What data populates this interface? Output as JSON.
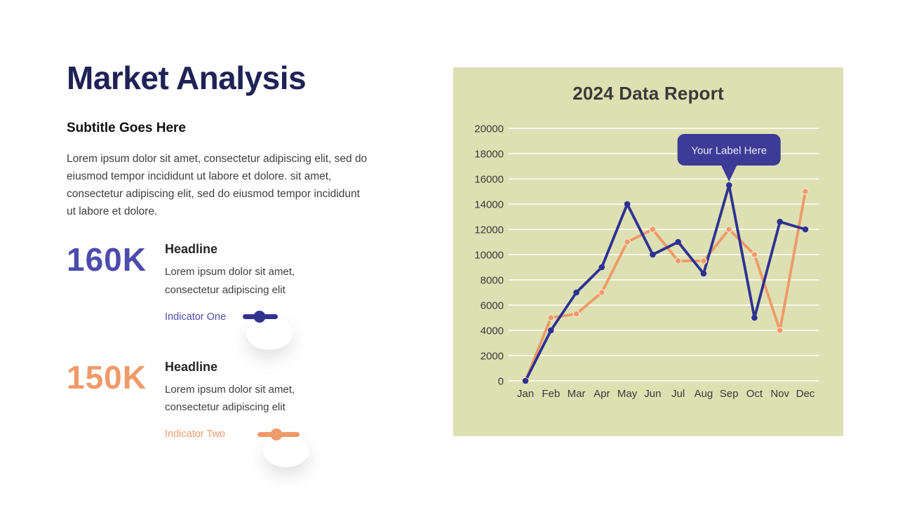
{
  "left_panel": {
    "title": "Market Analysis",
    "subtitle": "Subtitle Goes Here",
    "paragraph": "Lorem ipsum dolor sit amet, consectetur adipiscing elit, sed do eiusmod tempor incididunt ut labore et dolore. sit amet, consectetur adipiscing elit, sed do eiusmod tempor incididunt ut labore et dolore.",
    "stats": [
      {
        "value": "160K",
        "value_color": "#4b4cab",
        "headline": "Headline",
        "description": "Lorem ipsum dolor sit amet, consectetur adipiscing elit",
        "indicator_label": "Indicator One",
        "indicator_color": "#32338f"
      },
      {
        "value": "150K",
        "value_color": "#ef9a6a",
        "headline": "Headline",
        "description": "Lorem ipsum dolor sit amet, consectetur adipiscing elit",
        "indicator_label": "Indicator Two",
        "indicator_color": "#ef9a6a"
      }
    ]
  },
  "chart_panel": {
    "title": "2024 Data Report",
    "background": "#dde0b2"
  },
  "chart_data": {
    "type": "line",
    "title": "2024 Data Report",
    "x": [
      "Jan",
      "Feb",
      "Mar",
      "Apr",
      "May",
      "Jun",
      "Jul",
      "Aug",
      "Sep",
      "Oct",
      "Nov",
      "Dec"
    ],
    "xlabel": "",
    "ylabel": "",
    "ylim": [
      0,
      20000
    ],
    "ytick_step": 2000,
    "grid": true,
    "gridline_color": "#ffffff",
    "legend_position": "none",
    "series": [
      {
        "name": "Indicator One",
        "color": "#2e3192",
        "values": [
          0,
          4000,
          7000,
          9000,
          14000,
          10000,
          11000,
          8500,
          15500,
          5000,
          12600,
          12000
        ]
      },
      {
        "name": "Indicator Two",
        "color": "#ef9a6a",
        "marker_stroke": "#f7dfc8",
        "values": [
          0,
          5000,
          5300,
          7000,
          11000,
          12000,
          9500,
          9500,
          12000,
          10000,
          4000,
          15000
        ]
      }
    ],
    "annotation": {
      "text": "Your Label Here",
      "series": 0,
      "x_index": 8,
      "bg": "#3c3b96",
      "text_color": "#e9ecf8"
    }
  }
}
